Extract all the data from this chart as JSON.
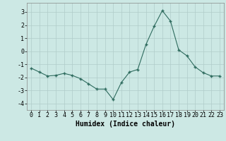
{
  "x": [
    0,
    1,
    2,
    3,
    4,
    5,
    6,
    7,
    8,
    9,
    10,
    11,
    12,
    13,
    14,
    15,
    16,
    17,
    18,
    19,
    20,
    21,
    22,
    23
  ],
  "y": [
    -1.3,
    -1.6,
    -1.9,
    -1.85,
    -1.7,
    -1.85,
    -2.1,
    -2.5,
    -2.9,
    -2.9,
    -3.7,
    -2.4,
    -1.6,
    -1.4,
    0.5,
    1.9,
    3.1,
    2.3,
    0.1,
    -0.35,
    -1.2,
    -1.65,
    -1.9,
    -1.9
  ],
  "xlabel": "Humidex (Indice chaleur)",
  "ylim": [
    -4.5,
    3.7
  ],
  "xlim": [
    -0.5,
    23.5
  ],
  "yticks": [
    -4,
    -3,
    -2,
    -1,
    0,
    1,
    2,
    3
  ],
  "xticks": [
    0,
    1,
    2,
    3,
    4,
    5,
    6,
    7,
    8,
    9,
    10,
    11,
    12,
    13,
    14,
    15,
    16,
    17,
    18,
    19,
    20,
    21,
    22,
    23
  ],
  "line_color": "#2e6b5e",
  "marker_color": "#2e6b5e",
  "bg_color": "#cce8e4",
  "grid_color": "#b0ccc9",
  "fig_bg": "#cce8e4",
  "xlabel_fontsize": 7,
  "tick_fontsize": 6
}
